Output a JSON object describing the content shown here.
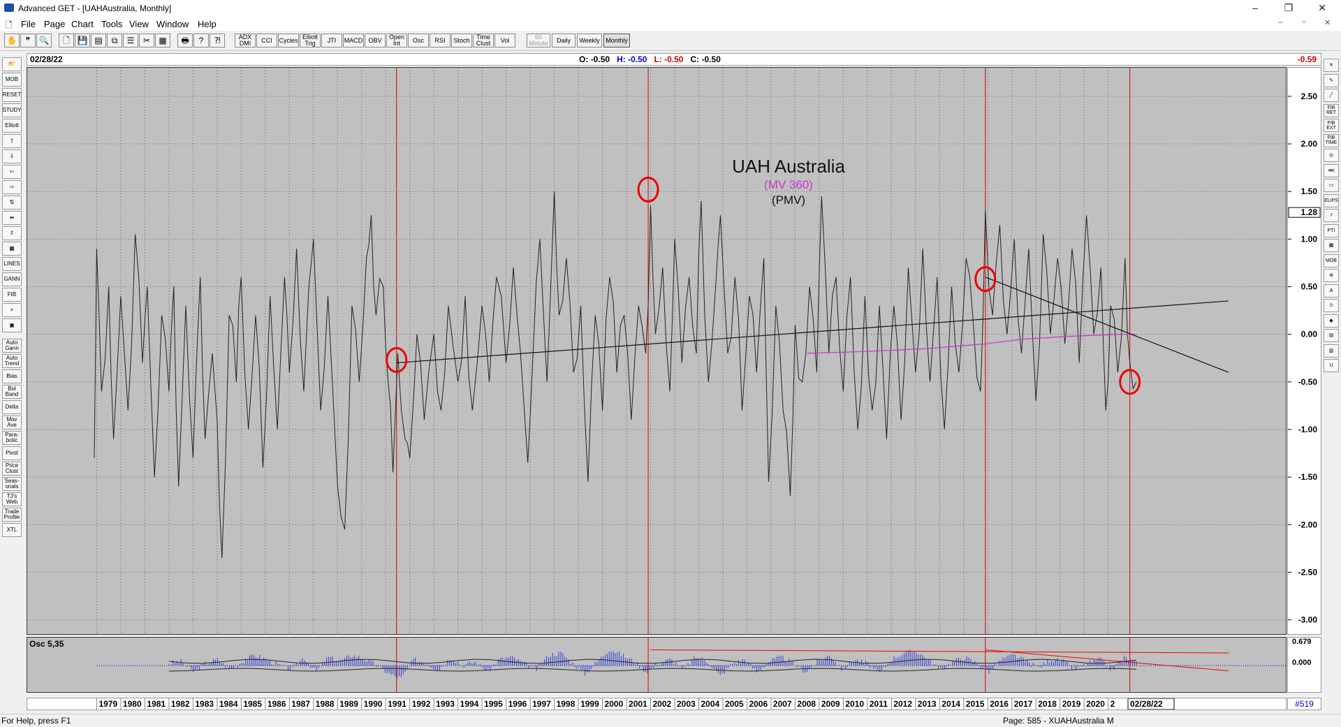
{
  "window": {
    "title": "Advanced GET - [UAHAustralia, Monthly]",
    "controls": [
      "–",
      "❐",
      "✕"
    ]
  },
  "menu": [
    "File",
    "Page",
    "Chart",
    "Tools",
    "View",
    "Window",
    "Help"
  ],
  "toolbar": {
    "icons": [
      "hand-icon",
      "quote-icon",
      "magnify-icon",
      "page-icon",
      "save-icon",
      "print-icon",
      "copy-icon",
      "cut-icon",
      "grid-icon",
      "list-icon",
      "printer-icon",
      "help-icon",
      "help-pointer-icon"
    ],
    "buttons": [
      "ADX DMI",
      "CCI",
      "Cycles",
      "Elliott Trig",
      "JTI",
      "MACD",
      "OBV",
      "Open Int",
      "Osc",
      "RSI",
      "Stoch",
      "Time Clust",
      "Vol"
    ],
    "periods": [
      "60 Minute",
      "Daily",
      "Weekly",
      "Monthly"
    ]
  },
  "left_tools": [
    "📂",
    "MOB",
    "RESET",
    "STUDY",
    "Elliott",
    "⇧",
    "⇩",
    "⇦",
    "⇨",
    "⇅",
    "⇹",
    "⇳",
    "▦",
    "LINES",
    "GANN",
    "FIB",
    "+",
    "▣",
    "Auto Gann",
    "Auto Trend",
    "Bias",
    "Bol Band",
    "Delta",
    "Mov Ave",
    "Para-bolic",
    "Pivot",
    "Price Clust",
    "Seas-onals",
    "TJ's Web",
    "Trade Profile",
    "XTL"
  ],
  "right_tools": [
    "✕",
    "✎",
    "╱",
    "FIB RET",
    "FIB EXT",
    "FIB TIME",
    "◎",
    "⋘",
    "▭",
    "ELIPS",
    "⫽",
    "PTI",
    "▦",
    "MOB",
    "⊕",
    "A",
    "⊙",
    "◆",
    "▤",
    "▥",
    "U"
  ],
  "info": {
    "date": "02/28/22",
    "open_label": "O:",
    "open": "-0.50",
    "high_label": "H:",
    "high": "-0.50",
    "low_label": "L:",
    "low": "-0.50",
    "close_label": "C:",
    "close": "-0.50",
    "last": "-0.59"
  },
  "chart_data": {
    "type": "line",
    "title": "UAH Australia",
    "subtitle_mv": "(MV 360)",
    "subtitle_pmv": "(PMV)",
    "x_range": [
      1978.9,
      2022.17
    ],
    "ylim": [
      -3.15,
      2.8
    ],
    "y_ticks": [
      "2.50",
      "2.00",
      "1.50",
      "1.00",
      "0.50",
      "0.00",
      "-0.50",
      "-1.00",
      "-1.50",
      "-2.00",
      "-2.50",
      "-3.00"
    ],
    "y_tick_values": [
      2.5,
      2.0,
      1.5,
      1.0,
      0.5,
      0.0,
      -0.5,
      -1.0,
      -1.5,
      -2.0,
      -2.5,
      -3.0
    ],
    "current_value_label": "1.28",
    "current_value": 1.28,
    "x_tick_labels": [
      "1979",
      "1980",
      "1981",
      "1982",
      "1983",
      "1984",
      "1985",
      "1986",
      "1987",
      "1988",
      "1989",
      "1990",
      "1991",
      "1992",
      "1993",
      "1994",
      "1995",
      "1996",
      "1997",
      "1998",
      "1999",
      "2000",
      "2001",
      "2002",
      "2003",
      "2004",
      "2005",
      "2006",
      "2007",
      "2008",
      "2009",
      "2010",
      "2011",
      "2012",
      "2013",
      "2014",
      "2015",
      "2016",
      "2017",
      "2018",
      "2019",
      "2020",
      "2"
    ],
    "x_last_label": "02/28/22",
    "keypoints": [
      [
        1978.9,
        -1.3
      ],
      [
        1979.0,
        0.9
      ],
      [
        1979.2,
        -0.6
      ],
      [
        1979.5,
        0.5
      ],
      [
        1979.7,
        -1.1
      ],
      [
        1980.0,
        0.4
      ],
      [
        1980.3,
        -0.8
      ],
      [
        1980.6,
        1.05
      ],
      [
        1980.9,
        -0.3
      ],
      [
        1981.1,
        0.5
      ],
      [
        1981.4,
        -1.5
      ],
      [
        1981.7,
        0.2
      ],
      [
        1982.0,
        -0.6
      ],
      [
        1982.2,
        0.5
      ],
      [
        1982.4,
        -1.6
      ],
      [
        1982.7,
        0.3
      ],
      [
        1983.0,
        -1.3
      ],
      [
        1983.3,
        0.6
      ],
      [
        1983.5,
        -1.1
      ],
      [
        1983.8,
        -0.2
      ],
      [
        1984.0,
        -0.9
      ],
      [
        1984.2,
        -2.35
      ],
      [
        1984.5,
        0.2
      ],
      [
        1984.8,
        -0.5
      ],
      [
        1985.0,
        0.6
      ],
      [
        1985.3,
        -1.0
      ],
      [
        1985.6,
        0.2
      ],
      [
        1985.9,
        -1.4
      ],
      [
        1986.2,
        0.4
      ],
      [
        1986.5,
        -1.0
      ],
      [
        1986.8,
        0.6
      ],
      [
        1987.0,
        -0.4
      ],
      [
        1987.3,
        0.9
      ],
      [
        1987.6,
        -0.6
      ],
      [
        1988.0,
        1.0
      ],
      [
        1988.3,
        -0.8
      ],
      [
        1988.6,
        0.4
      ],
      [
        1989.0,
        -1.6
      ],
      [
        1989.3,
        -2.05
      ],
      [
        1989.6,
        0.3
      ],
      [
        1989.9,
        -0.5
      ],
      [
        1990.2,
        0.8
      ],
      [
        1990.4,
        1.25
      ],
      [
        1990.6,
        0.2
      ],
      [
        1990.9,
        0.5
      ],
      [
        1991.1,
        -0.5
      ],
      [
        1991.3,
        -1.45
      ],
      [
        1991.5,
        -0.2
      ],
      [
        1991.8,
        -1.1
      ],
      [
        1992.0,
        -1.3
      ],
      [
        1992.3,
        0.0
      ],
      [
        1992.6,
        -0.9
      ],
      [
        1993.0,
        0.0
      ],
      [
        1993.3,
        -0.8
      ],
      [
        1993.6,
        0.3
      ],
      [
        1994.0,
        -0.5
      ],
      [
        1994.3,
        0.4
      ],
      [
        1994.6,
        -0.8
      ],
      [
        1995.0,
        0.3
      ],
      [
        1995.3,
        -0.5
      ],
      [
        1995.6,
        0.6
      ],
      [
        1996.0,
        -0.3
      ],
      [
        1996.3,
        0.7
      ],
      [
        1996.6,
        -0.2
      ],
      [
        1996.9,
        -1.35
      ],
      [
        1997.1,
        -0.3
      ],
      [
        1997.4,
        1.0
      ],
      [
        1997.7,
        -0.5
      ],
      [
        1998.0,
        1.5
      ],
      [
        1998.2,
        0.2
      ],
      [
        1998.5,
        0.8
      ],
      [
        1998.8,
        -0.4
      ],
      [
        1999.1,
        0.3
      ],
      [
        1999.4,
        -1.55
      ],
      [
        1999.7,
        0.2
      ],
      [
        2000.0,
        -0.8
      ],
      [
        2000.3,
        0.6
      ],
      [
        2000.6,
        -0.4
      ],
      [
        2000.9,
        0.2
      ],
      [
        2001.2,
        -0.9
      ],
      [
        2001.5,
        0.3
      ],
      [
        2001.8,
        -0.2
      ],
      [
        2002.0,
        1.35
      ],
      [
        2002.2,
        0.0
      ],
      [
        2002.5,
        0.7
      ],
      [
        2002.8,
        -0.6
      ],
      [
        2003.0,
        1.0
      ],
      [
        2003.3,
        -0.3
      ],
      [
        2003.6,
        0.6
      ],
      [
        2003.9,
        -0.2
      ],
      [
        2004.1,
        1.4
      ],
      [
        2004.4,
        -0.5
      ],
      [
        2004.7,
        0.5
      ],
      [
        2004.9,
        1.25
      ],
      [
        2005.2,
        -0.2
      ],
      [
        2005.5,
        0.6
      ],
      [
        2005.8,
        -0.8
      ],
      [
        2006.1,
        0.4
      ],
      [
        2006.4,
        -0.4
      ],
      [
        2006.7,
        0.8
      ],
      [
        2006.9,
        -1.55
      ],
      [
        2007.2,
        0.3
      ],
      [
        2007.5,
        -0.8
      ],
      [
        2007.8,
        -1.7
      ],
      [
        2008.0,
        0.1
      ],
      [
        2008.3,
        -0.5
      ],
      [
        2008.6,
        0.5
      ],
      [
        2008.9,
        -0.4
      ],
      [
        2009.1,
        1.45
      ],
      [
        2009.4,
        -0.2
      ],
      [
        2009.7,
        0.6
      ],
      [
        2010.0,
        -0.6
      ],
      [
        2010.3,
        0.6
      ],
      [
        2010.6,
        -1.0
      ],
      [
        2010.9,
        0.4
      ],
      [
        2011.2,
        -0.8
      ],
      [
        2011.5,
        0.3
      ],
      [
        2011.8,
        -1.1
      ],
      [
        2012.1,
        0.3
      ],
      [
        2012.4,
        -0.9
      ],
      [
        2012.7,
        0.7
      ],
      [
        2013.0,
        -0.4
      ],
      [
        2013.3,
        0.9
      ],
      [
        2013.6,
        -0.5
      ],
      [
        2013.9,
        0.6
      ],
      [
        2014.2,
        -1.0
      ],
      [
        2014.5,
        0.5
      ],
      [
        2014.8,
        -0.4
      ],
      [
        2015.1,
        0.8
      ],
      [
        2015.4,
        0.1
      ],
      [
        2015.7,
        -0.6
      ],
      [
        2015.9,
        1.3
      ],
      [
        2016.2,
        0.2
      ],
      [
        2016.5,
        1.15
      ],
      [
        2016.8,
        0.0
      ],
      [
        2017.1,
        1.0
      ],
      [
        2017.4,
        -0.2
      ],
      [
        2017.7,
        0.9
      ],
      [
        2018.0,
        -0.7
      ],
      [
        2018.3,
        1.05
      ],
      [
        2018.6,
        0.0
      ],
      [
        2018.9,
        0.8
      ],
      [
        2019.2,
        -0.1
      ],
      [
        2019.5,
        0.9
      ],
      [
        2019.8,
        -0.3
      ],
      [
        2020.1,
        1.25
      ],
      [
        2020.4,
        0.0
      ],
      [
        2020.7,
        0.7
      ],
      [
        2020.9,
        -0.8
      ],
      [
        2021.1,
        0.3
      ],
      [
        2021.4,
        -0.4
      ],
      [
        2021.7,
        0.8
      ],
      [
        2021.9,
        -0.3
      ],
      [
        2022.17,
        -0.5
      ]
    ],
    "trend_lines": [
      {
        "x1": 1991.45,
        "y1": -0.3,
        "x2": 2026.0,
        "y2": 0.35
      },
      {
        "x1": 2015.9,
        "y1": 0.6,
        "x2": 2026.0,
        "y2": -0.4
      }
    ],
    "mv360": [
      [
        2008.5,
        -0.2
      ],
      [
        2011.0,
        -0.18
      ],
      [
        2013.5,
        -0.15
      ],
      [
        2015.9,
        -0.1
      ],
      [
        2017.5,
        -0.05
      ],
      [
        2019.5,
        -0.02
      ],
      [
        2021.5,
        0.0
      ],
      [
        2022.17,
        0.0
      ]
    ],
    "vertical_markers_x": [
      1991.45,
      2001.9,
      2015.9,
      2021.9
    ],
    "circles": [
      {
        "x": 1991.45,
        "y": -0.27
      },
      {
        "x": 2001.9,
        "y": 1.52
      },
      {
        "x": 2015.9,
        "y": 0.58
      },
      {
        "x": 2021.9,
        "y": -0.5
      }
    ]
  },
  "oscillator": {
    "label": "Osc 5,35",
    "y_ticks": [
      "0.679",
      "0.000"
    ],
    "values": [
      0.1,
      0.2,
      -0.3,
      0.1,
      0.3,
      -0.2,
      0.2,
      0.5,
      0.3,
      0.0,
      -0.2,
      0.4,
      -0.3,
      0.4,
      0.2,
      0.5,
      0.3,
      0.0,
      -0.4,
      -0.6,
      0.3,
      0.1,
      -0.2,
      0.4,
      0.0,
      0.2,
      -0.3,
      0.3,
      0.4,
      0.1,
      -0.2,
      0.5,
      0.6,
      0.1,
      -0.4,
      0.2,
      0.8,
      0.5,
      0.2,
      -0.3,
      0.1,
      0.3,
      -0.2,
      0.4,
      0.2,
      -0.5,
      0.1,
      0.3,
      -0.3,
      0.2,
      0.4,
      0.1,
      -0.3,
      0.2,
      0.5,
      -0.2,
      0.3,
      0.1,
      -0.4,
      0.3,
      0.6,
      0.7,
      0.3,
      -0.2,
      0.2,
      0.4,
      0.1,
      -0.3,
      0.3,
      0.5,
      0.2,
      -0.1,
      0.3,
      0.2,
      -0.2,
      0.1,
      0.3,
      -0.2,
      0.4,
      0.1
    ],
    "red_lines": [
      {
        "x1": 2002.0,
        "y1": 0.75,
        "x2": 2026.0,
        "y2": 0.6
      },
      {
        "x1": 2015.9,
        "y1": 0.75,
        "x2": 2026.0,
        "y2": -0.25
      }
    ]
  },
  "status": {
    "left": "For Help, press F1",
    "right": "Page: 585 - XUAHAustralia M",
    "bars": "#519"
  }
}
